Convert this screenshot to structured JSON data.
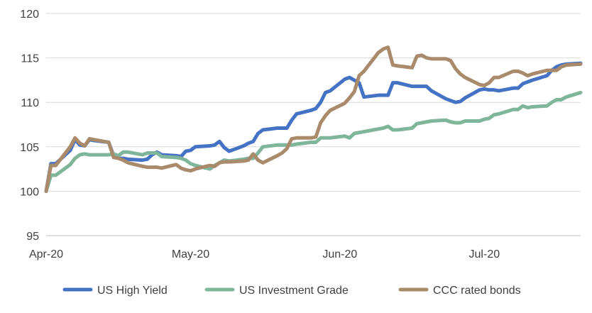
{
  "chart_data": {
    "type": "line",
    "title": "",
    "xlabel": "",
    "ylabel": "",
    "ylim": [
      95,
      120
    ],
    "yticks": [
      95,
      100,
      105,
      110,
      115,
      120
    ],
    "x_tick_labels": [
      "Apr-20",
      "May-20",
      "Jun-20",
      "Jul-20"
    ],
    "x_tick_days": [
      0,
      30,
      61,
      91
    ],
    "x_range_days": [
      0,
      111
    ],
    "grid": true,
    "legend_position": "bottom",
    "x": [
      0,
      1,
      2,
      5,
      6,
      7,
      8,
      9,
      10,
      13,
      14,
      15,
      16,
      17,
      20,
      21,
      22,
      23,
      24,
      27,
      28,
      29,
      30,
      31,
      34,
      35,
      36,
      37,
      38,
      41,
      42,
      43,
      44,
      45,
      48,
      49,
      50,
      51,
      52,
      55,
      56,
      57,
      58,
      59,
      62,
      63,
      64,
      65,
      66,
      69,
      70,
      71,
      72,
      73,
      76,
      77,
      78,
      79,
      80,
      83,
      84,
      85,
      86,
      87,
      90,
      91,
      92,
      93,
      94,
      97,
      98,
      99,
      100,
      101,
      104,
      105,
      106,
      107,
      108,
      111
    ],
    "series": [
      {
        "name": "US High Yield",
        "color": "#4472c4",
        "values": [
          100.0,
          103.1,
          103.1,
          104.6,
          105.8,
          105.2,
          105.1,
          105.8,
          105.7,
          105.5,
          104.0,
          103.7,
          103.7,
          103.6,
          103.5,
          103.6,
          104.1,
          104.4,
          104.1,
          104.0,
          103.9,
          104.5,
          104.6,
          105.0,
          105.1,
          105.2,
          105.6,
          104.9,
          104.5,
          105.1,
          105.4,
          105.6,
          106.5,
          106.9,
          107.1,
          107.1,
          107.1,
          108.0,
          108.7,
          109.1,
          109.3,
          110.0,
          111.1,
          111.3,
          112.6,
          112.8,
          112.5,
          112.2,
          110.6,
          110.8,
          110.8,
          110.8,
          112.2,
          112.2,
          111.8,
          111.8,
          111.8,
          111.8,
          111.3,
          110.4,
          110.2,
          110.0,
          110.1,
          110.5,
          111.4,
          111.5,
          111.4,
          111.4,
          111.3,
          111.6,
          111.6,
          112.1,
          112.3,
          112.5,
          113.0,
          113.6,
          114.0,
          114.2,
          114.3,
          114.4
        ]
      },
      {
        "name": "US Investment Grade",
        "color": "#7fb59a",
        "values": [
          100.0,
          101.8,
          101.8,
          103.0,
          103.7,
          104.1,
          104.2,
          104.1,
          104.1,
          104.1,
          104.2,
          104.0,
          104.4,
          104.4,
          104.1,
          104.3,
          104.3,
          104.3,
          103.9,
          103.8,
          103.7,
          103.5,
          103.1,
          102.9,
          102.5,
          102.9,
          103.2,
          103.5,
          103.4,
          103.6,
          103.7,
          103.7,
          104.3,
          105.0,
          105.2,
          105.2,
          105.2,
          105.2,
          105.3,
          105.5,
          105.5,
          106.0,
          106.0,
          106.0,
          106.2,
          106.0,
          106.5,
          106.6,
          106.7,
          107.0,
          107.1,
          107.3,
          106.9,
          106.9,
          107.1,
          107.6,
          107.7,
          107.8,
          107.9,
          108.0,
          107.8,
          107.7,
          107.7,
          107.9,
          107.9,
          108.1,
          108.2,
          108.6,
          108.7,
          109.2,
          109.2,
          109.6,
          109.4,
          109.5,
          109.6,
          110.0,
          110.3,
          110.3,
          110.6,
          111.1
        ]
      },
      {
        "name": "CCC rated bonds",
        "color": "#a98a6b",
        "values": [
          100.0,
          102.9,
          102.9,
          105.0,
          106.0,
          105.4,
          105.1,
          105.9,
          105.8,
          105.5,
          103.8,
          103.7,
          103.5,
          103.2,
          102.8,
          102.7,
          102.7,
          102.7,
          102.6,
          103.0,
          102.6,
          102.4,
          102.3,
          102.5,
          102.9,
          102.8,
          103.2,
          103.3,
          103.3,
          103.4,
          103.5,
          104.2,
          103.5,
          103.2,
          104.0,
          104.3,
          104.8,
          105.9,
          106.0,
          106.0,
          106.1,
          107.7,
          108.5,
          109.1,
          109.9,
          110.5,
          111.2,
          113.0,
          113.5,
          115.6,
          116.0,
          116.2,
          114.2,
          114.1,
          113.9,
          115.2,
          115.3,
          115.0,
          114.9,
          114.9,
          114.7,
          113.8,
          113.2,
          112.8,
          112.0,
          111.9,
          112.2,
          112.8,
          112.8,
          113.5,
          113.5,
          113.3,
          113.0,
          113.2,
          113.6,
          113.6,
          113.6,
          114.0,
          114.2,
          114.3
        ]
      }
    ]
  }
}
